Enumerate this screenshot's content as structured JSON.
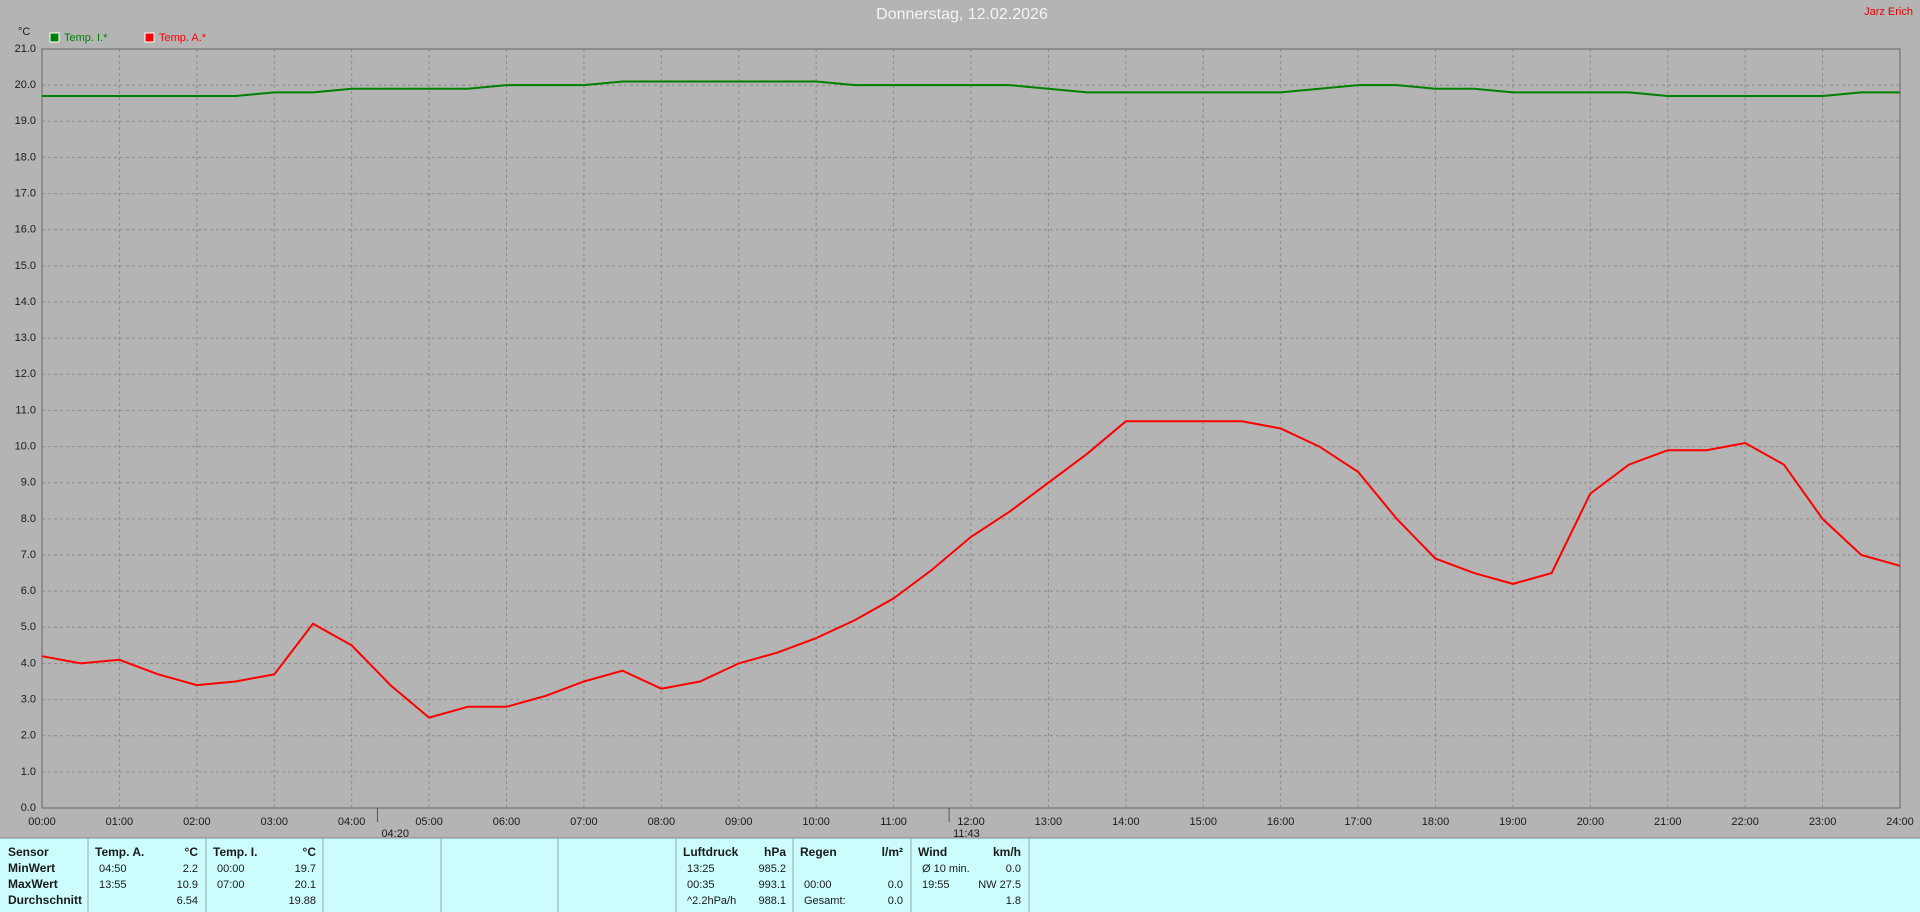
{
  "chart_data": {
    "type": "line",
    "title": "Donnerstag, 12.02.2026",
    "owner": "Jarz Erich",
    "y_unit": "°C",
    "grid": true,
    "x": [
      0,
      0.5,
      1,
      1.5,
      2,
      2.5,
      3,
      3.5,
      4,
      4.5,
      5,
      5.5,
      6,
      6.5,
      7,
      7.5,
      8,
      8.5,
      9,
      9.5,
      10,
      10.5,
      11,
      11.5,
      12,
      12.5,
      13,
      13.5,
      14,
      14.5,
      15,
      15.5,
      16,
      16.5,
      17,
      17.5,
      18,
      18.5,
      19,
      19.5,
      20,
      20.5,
      21,
      21.5,
      22,
      22.5,
      23,
      23.5,
      24
    ],
    "series": [
      {
        "name": "Temp. I.*",
        "color": "#008000",
        "values": [
          19.7,
          19.7,
          19.7,
          19.7,
          19.7,
          19.7,
          19.8,
          19.8,
          19.9,
          19.9,
          19.9,
          19.9,
          20.0,
          20.0,
          20.0,
          20.1,
          20.1,
          20.1,
          20.1,
          20.1,
          20.1,
          20.0,
          20.0,
          20.0,
          20.0,
          20.0,
          19.9,
          19.8,
          19.8,
          19.8,
          19.8,
          19.8,
          19.8,
          19.9,
          20.0,
          20.0,
          19.9,
          19.9,
          19.8,
          19.8,
          19.8,
          19.8,
          19.7,
          19.7,
          19.7,
          19.7,
          19.7,
          19.8,
          19.8
        ]
      },
      {
        "name": "Temp. A.*",
        "color": "#ff0000",
        "values": [
          4.2,
          4.0,
          4.1,
          3.7,
          3.4,
          3.5,
          3.7,
          5.1,
          4.5,
          3.4,
          2.5,
          2.8,
          2.8,
          3.1,
          3.5,
          3.8,
          3.3,
          3.5,
          4.0,
          4.3,
          4.7,
          5.2,
          5.8,
          6.6,
          7.5,
          8.2,
          9.0,
          9.8,
          10.7,
          10.7,
          10.7,
          10.7,
          10.5,
          10.0,
          9.3,
          8.0,
          6.9,
          6.5,
          6.2,
          6.5,
          8.7,
          9.5,
          9.9,
          9.9,
          10.1,
          9.5,
          8.0,
          7.0,
          6.7
        ]
      }
    ],
    "xlim": [
      0,
      24
    ],
    "xticks": [
      {
        "value": 0,
        "label": "00:00"
      },
      {
        "value": 1,
        "label": "01:00"
      },
      {
        "value": 2,
        "label": "02:00"
      },
      {
        "value": 3,
        "label": "03:00"
      },
      {
        "value": 4,
        "label": "04:00"
      },
      {
        "value": 5,
        "label": "05:00"
      },
      {
        "value": 6,
        "label": "06:00"
      },
      {
        "value": 7,
        "label": "07:00"
      },
      {
        "value": 8,
        "label": "08:00"
      },
      {
        "value": 9,
        "label": "09:00"
      },
      {
        "value": 10,
        "label": "10:00"
      },
      {
        "value": 11,
        "label": "11:00"
      },
      {
        "value": 12,
        "label": "12:00"
      },
      {
        "value": 13,
        "label": "13:00"
      },
      {
        "value": 14,
        "label": "14:00"
      },
      {
        "value": 15,
        "label": "15:00"
      },
      {
        "value": 16,
        "label": "16:00"
      },
      {
        "value": 17,
        "label": "17:00"
      },
      {
        "value": 18,
        "label": "18:00"
      },
      {
        "value": 19,
        "label": "19:00"
      },
      {
        "value": 20,
        "label": "20:00"
      },
      {
        "value": 21,
        "label": "21:00"
      },
      {
        "value": 22,
        "label": "22:00"
      },
      {
        "value": 23,
        "label": "23:00"
      },
      {
        "value": 24,
        "label": "24:00"
      }
    ],
    "ylim": [
      0,
      21
    ],
    "yticks": [
      {
        "value": 0,
        "label": "0.0"
      },
      {
        "value": 1,
        "label": "1.0"
      },
      {
        "value": 2,
        "label": "2.0"
      },
      {
        "value": 3,
        "label": "3.0"
      },
      {
        "value": 4,
        "label": "4.0"
      },
      {
        "value": 5,
        "label": "5.0"
      },
      {
        "value": 6,
        "label": "6.0"
      },
      {
        "value": 7,
        "label": "7.0"
      },
      {
        "value": 8,
        "label": "8.0"
      },
      {
        "value": 9,
        "label": "9.0"
      },
      {
        "value": 10,
        "label": "10.0"
      },
      {
        "value": 11,
        "label": "11.0"
      },
      {
        "value": 12,
        "label": "12.0"
      },
      {
        "value": 13,
        "label": "13.0"
      },
      {
        "value": 14,
        "label": "14.0"
      },
      {
        "value": 15,
        "label": "15.0"
      },
      {
        "value": 16,
        "label": "16.0"
      },
      {
        "value": 17,
        "label": "17.0"
      },
      {
        "value": 18,
        "label": "18.0"
      },
      {
        "value": 19,
        "label": "19.0"
      },
      {
        "value": 20,
        "label": "20.0"
      },
      {
        "value": 21,
        "label": "21.0"
      }
    ],
    "markers": [
      {
        "x": 4.333,
        "label": "04:20"
      },
      {
        "x": 11.717,
        "label": "11:43"
      }
    ]
  },
  "table": {
    "row_labels": [
      "Sensor",
      "MinWert",
      "MaxWert",
      "Durchschnitt"
    ],
    "groups": [
      {
        "header": "Temp. A.",
        "unit": "°C",
        "rows": [
          {
            "time": "04:50",
            "value": "2.2"
          },
          {
            "time": "13:55",
            "value": "10.9"
          },
          {
            "value": "6.54"
          }
        ]
      },
      {
        "header": "Temp. I.",
        "unit": "°C",
        "rows": [
          {
            "time": "00:00",
            "value": "19.7"
          },
          {
            "time": "07:00",
            "value": "20.1"
          },
          {
            "value": "19.88"
          }
        ]
      },
      {
        "header": "Luftdruck",
        "unit": "hPa",
        "rows": [
          {
            "time": "13:25",
            "value": "985.2"
          },
          {
            "time": "00:35",
            "value": "993.1"
          },
          {
            "time": "^2.2hPa/h",
            "value": "988.1"
          }
        ]
      },
      {
        "header": "Regen",
        "unit": "l/m²",
        "rows": [
          null,
          {
            "time": "00:00",
            "value": "0.0"
          },
          {
            "time": "Gesamt:",
            "value": "0.0"
          }
        ]
      },
      {
        "header": "Wind",
        "unit": "km/h",
        "rows": [
          {
            "time": "Ø 10 min.",
            "value": "0.0"
          },
          {
            "time": "19:55",
            "value": "NW 27.5"
          },
          {
            "value": "1.8"
          }
        ]
      }
    ]
  }
}
